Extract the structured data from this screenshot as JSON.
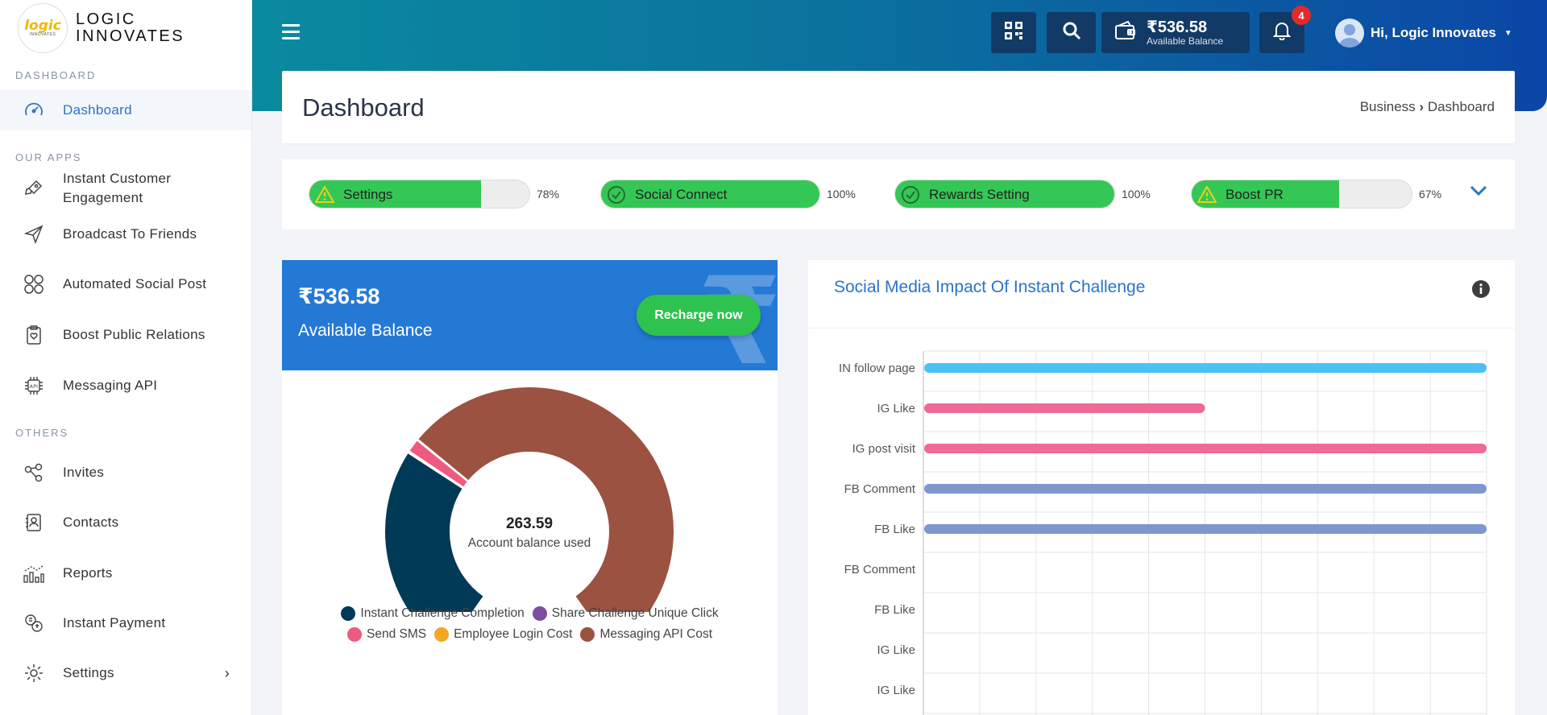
{
  "brand": {
    "logo_text": "logic",
    "logo_sub": "INNOVATES",
    "name_line1": "LOGIC",
    "name_line2": "INNOVATES"
  },
  "sidebar": {
    "sections": [
      {
        "label": "DASHBOARD"
      },
      {
        "label": "OUR APPS"
      },
      {
        "label": "OTHERS"
      }
    ],
    "items": [
      {
        "label": "Dashboard",
        "icon": "speedometer-icon",
        "active": true
      },
      {
        "label": "Instant Customer Engagement",
        "icon": "rocket-icon"
      },
      {
        "label": "Broadcast To Friends",
        "icon": "paper-plane-icon"
      },
      {
        "label": "Automated Social Post",
        "icon": "social-grid-icon"
      },
      {
        "label": "Boost Public Relations",
        "icon": "clipboard-heart-icon"
      },
      {
        "label": "Messaging API",
        "icon": "api-chip-icon"
      },
      {
        "label": "Invites",
        "icon": "share-nodes-icon"
      },
      {
        "label": "Contacts",
        "icon": "contact-book-icon"
      },
      {
        "label": "Reports",
        "icon": "bar-chart-icon"
      },
      {
        "label": "Instant Payment",
        "icon": "payment-exchange-icon"
      },
      {
        "label": "Settings",
        "icon": "gear-icon"
      }
    ]
  },
  "header": {
    "wallet_amount": "₹536.58",
    "wallet_label": "Available Balance",
    "notification_count": "4",
    "greeting": "Hi, Logic Innovates"
  },
  "page": {
    "title": "Dashboard",
    "breadcrumb_parent": "Business",
    "breadcrumb_current": "Dashboard"
  },
  "progress": [
    {
      "label": "Settings",
      "percent": 78,
      "percent_text": "78%",
      "status": "warning"
    },
    {
      "label": "Social Connect",
      "percent": 100,
      "percent_text": "100%",
      "status": "complete"
    },
    {
      "label": "Rewards Setting",
      "percent": 100,
      "percent_text": "100%",
      "status": "complete"
    },
    {
      "label": "Boost PR",
      "percent": 67,
      "percent_text": "67%",
      "status": "warning"
    }
  ],
  "balance": {
    "amount": "₹536.58",
    "label": "Available Balance",
    "recharge_label": "Recharge now",
    "center_value": "263.59",
    "center_label": "Account balance used"
  },
  "chart_data": [
    {
      "type": "pie",
      "variant": "semi-donut",
      "center_value": 263.59,
      "center_label": "Account balance used",
      "slices": [
        {
          "name": "Instant Challenge Completion",
          "value": 80,
          "color": "#003a57"
        },
        {
          "name": "Share Challenge Unique Click",
          "value": 0.6,
          "color": "#7b4f9e"
        },
        {
          "name": "Send SMS",
          "value": 5,
          "color": "#ef5b80"
        },
        {
          "name": "Employee Login Cost",
          "value": 0.3,
          "color": "#f5a623"
        },
        {
          "name": "Messaging API Cost",
          "value": 177.7,
          "color": "#9c5241"
        }
      ],
      "legend_placement": "bottom"
    },
    {
      "type": "bar",
      "orientation": "horizontal",
      "title": "Social Media Impact Of Instant Challenge",
      "categories": [
        "IN follow page",
        "IG Like",
        "IG post visit",
        "FB Comment",
        "FB Like",
        "FB Comment",
        "FB Like",
        "IG Like",
        "IG Like"
      ],
      "values": [
        100,
        50,
        100,
        100,
        100,
        0,
        0,
        0,
        0
      ],
      "colors": [
        "#4cc1f5",
        "#ef6a95",
        "#ef6a95",
        "#7f97cf",
        "#7f97cf",
        "#7f97cf",
        "#7f97cf",
        "#ef6a95",
        "#ef6a95"
      ],
      "xlim": [
        0,
        100
      ],
      "grid": true
    }
  ]
}
